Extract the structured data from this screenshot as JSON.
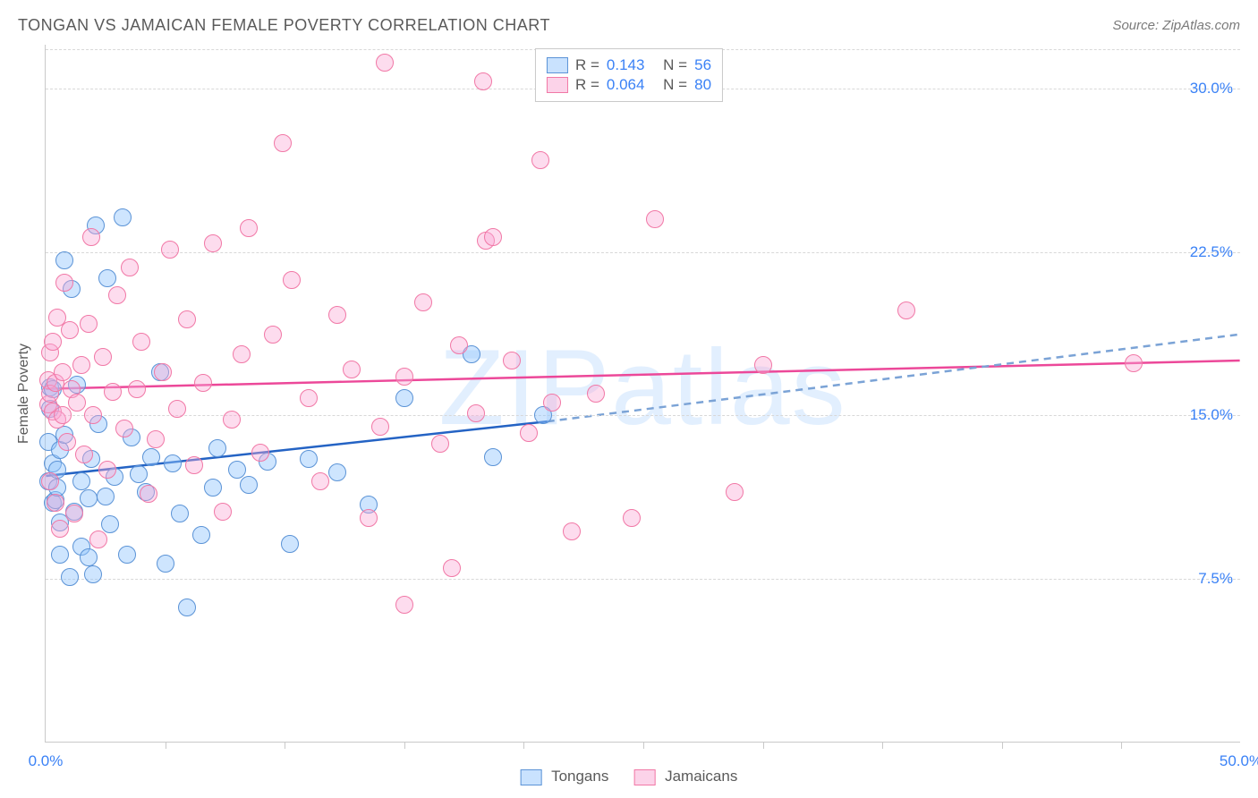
{
  "title": "TONGAN VS JAMAICAN FEMALE POVERTY CORRELATION CHART",
  "source": "Source: ZipAtlas.com",
  "watermark": "ZIPatlas",
  "ylabel": "Female Poverty",
  "chart": {
    "type": "scatter",
    "x_domain": [
      0,
      50
    ],
    "y_domain": [
      0,
      32
    ],
    "xticks_minor": [
      5,
      10,
      15,
      20,
      25,
      30,
      35,
      40,
      45
    ],
    "xtick_labels": [
      {
        "v": 0,
        "label": "0.0%"
      },
      {
        "v": 50,
        "label": "50.0%"
      }
    ],
    "ytick_labels": [
      {
        "v": 7.5,
        "label": "7.5%"
      },
      {
        "v": 15.0,
        "label": "15.0%"
      },
      {
        "v": 22.5,
        "label": "22.5%"
      },
      {
        "v": 30.0,
        "label": "30.0%"
      }
    ],
    "gridlines_y": [
      7.5,
      15.0,
      22.5,
      30.0,
      31.8
    ],
    "background_color": "#ffffff",
    "grid_color": "#d8d8d8",
    "axis_color": "#c9c9c9",
    "label_color": "#3b82f6",
    "marker_radius": 10,
    "series": [
      {
        "name": "Tongans",
        "color_fill": "rgba(147,197,253,0.45)",
        "color_stroke": "#5b93d6",
        "R": "0.143",
        "N": "56",
        "trend": {
          "x1": 0,
          "y1": 12.2,
          "x2": 21,
          "y2": 14.7,
          "solid_color": "#2463c4",
          "dash": {
            "x1": 21,
            "y1": 14.7,
            "x2": 50,
            "y2": 18.7
          }
        },
        "points": [
          [
            0.1,
            12.0
          ],
          [
            0.1,
            13.8
          ],
          [
            0.2,
            15.3
          ],
          [
            0.2,
            16.3
          ],
          [
            0.3,
            11.0
          ],
          [
            0.3,
            12.8
          ],
          [
            0.3,
            16.2
          ],
          [
            0.4,
            11.1
          ],
          [
            0.5,
            11.7
          ],
          [
            0.5,
            12.5
          ],
          [
            0.6,
            13.4
          ],
          [
            0.6,
            8.6
          ],
          [
            0.6,
            10.1
          ],
          [
            0.8,
            14.1
          ],
          [
            0.8,
            22.1
          ],
          [
            1.0,
            7.6
          ],
          [
            1.1,
            20.8
          ],
          [
            1.2,
            10.6
          ],
          [
            1.3,
            16.4
          ],
          [
            1.5,
            12.0
          ],
          [
            1.5,
            9.0
          ],
          [
            1.8,
            8.5
          ],
          [
            1.8,
            11.2
          ],
          [
            1.9,
            13.0
          ],
          [
            2.0,
            7.7
          ],
          [
            2.1,
            23.7
          ],
          [
            2.2,
            14.6
          ],
          [
            2.5,
            11.3
          ],
          [
            2.6,
            21.3
          ],
          [
            2.7,
            10.0
          ],
          [
            2.9,
            12.2
          ],
          [
            3.2,
            24.1
          ],
          [
            3.4,
            8.6
          ],
          [
            3.6,
            14.0
          ],
          [
            3.9,
            12.3
          ],
          [
            4.2,
            11.5
          ],
          [
            4.4,
            13.1
          ],
          [
            4.8,
            17.0
          ],
          [
            5.0,
            8.2
          ],
          [
            5.3,
            12.8
          ],
          [
            5.6,
            10.5
          ],
          [
            5.9,
            6.2
          ],
          [
            6.5,
            9.5
          ],
          [
            7.0,
            11.7
          ],
          [
            7.2,
            13.5
          ],
          [
            8.0,
            12.5
          ],
          [
            8.5,
            11.8
          ],
          [
            9.3,
            12.9
          ],
          [
            10.2,
            9.1
          ],
          [
            11.0,
            13.0
          ],
          [
            12.2,
            12.4
          ],
          [
            13.5,
            10.9
          ],
          [
            15.0,
            15.8
          ],
          [
            17.8,
            17.8
          ],
          [
            18.7,
            13.1
          ],
          [
            20.8,
            15.0
          ]
        ]
      },
      {
        "name": "Jamaicans",
        "color_fill": "rgba(249,168,212,0.4)",
        "color_stroke": "#f178a6",
        "R": "0.064",
        "N": "80",
        "trend": {
          "x1": 0,
          "y1": 16.2,
          "x2": 50,
          "y2": 17.5,
          "solid_color": "#ec4899"
        },
        "points": [
          [
            0.1,
            15.5
          ],
          [
            0.1,
            16.6
          ],
          [
            0.2,
            12.0
          ],
          [
            0.2,
            16.0
          ],
          [
            0.2,
            17.9
          ],
          [
            0.3,
            15.2
          ],
          [
            0.3,
            18.4
          ],
          [
            0.4,
            11.0
          ],
          [
            0.4,
            16.5
          ],
          [
            0.5,
            14.8
          ],
          [
            0.5,
            19.5
          ],
          [
            0.6,
            9.8
          ],
          [
            0.7,
            15.0
          ],
          [
            0.7,
            17.0
          ],
          [
            0.8,
            21.1
          ],
          [
            0.9,
            13.8
          ],
          [
            1.0,
            18.9
          ],
          [
            1.1,
            16.2
          ],
          [
            1.2,
            10.5
          ],
          [
            1.3,
            15.6
          ],
          [
            1.5,
            17.3
          ],
          [
            1.6,
            13.2
          ],
          [
            1.8,
            19.2
          ],
          [
            1.9,
            23.2
          ],
          [
            2.0,
            15.0
          ],
          [
            2.2,
            9.3
          ],
          [
            2.4,
            17.7
          ],
          [
            2.6,
            12.5
          ],
          [
            2.8,
            16.1
          ],
          [
            3.0,
            20.5
          ],
          [
            3.3,
            14.4
          ],
          [
            3.5,
            21.8
          ],
          [
            3.8,
            16.2
          ],
          [
            4.0,
            18.4
          ],
          [
            4.3,
            11.4
          ],
          [
            4.6,
            13.9
          ],
          [
            4.9,
            17.0
          ],
          [
            5.2,
            22.6
          ],
          [
            5.5,
            15.3
          ],
          [
            5.9,
            19.4
          ],
          [
            6.2,
            12.7
          ],
          [
            6.6,
            16.5
          ],
          [
            7.0,
            22.9
          ],
          [
            7.4,
            10.6
          ],
          [
            7.8,
            14.8
          ],
          [
            8.2,
            17.8
          ],
          [
            8.5,
            23.6
          ],
          [
            9.0,
            13.3
          ],
          [
            9.5,
            18.7
          ],
          [
            9.9,
            27.5
          ],
          [
            10.3,
            21.2
          ],
          [
            11.0,
            15.8
          ],
          [
            11.5,
            12.0
          ],
          [
            12.2,
            19.6
          ],
          [
            12.8,
            17.1
          ],
          [
            13.5,
            10.3
          ],
          [
            14.0,
            14.5
          ],
          [
            14.2,
            31.2
          ],
          [
            15.0,
            16.8
          ],
          [
            15.0,
            6.3
          ],
          [
            15.8,
            20.2
          ],
          [
            16.5,
            13.7
          ],
          [
            17.0,
            8.0
          ],
          [
            17.3,
            18.2
          ],
          [
            18.0,
            15.1
          ],
          [
            18.3,
            30.3
          ],
          [
            18.4,
            23.0
          ],
          [
            18.7,
            23.2
          ],
          [
            19.5,
            17.5
          ],
          [
            20.2,
            14.2
          ],
          [
            20.7,
            26.7
          ],
          [
            21.2,
            15.6
          ],
          [
            22.0,
            9.7
          ],
          [
            23.0,
            16.0
          ],
          [
            24.5,
            10.3
          ],
          [
            25.5,
            24.0
          ],
          [
            28.8,
            11.5
          ],
          [
            30.0,
            17.3
          ],
          [
            36.0,
            19.8
          ],
          [
            45.5,
            17.4
          ]
        ]
      }
    ]
  },
  "legend_top": [
    {
      "swatch": "blue",
      "r_label": "R =",
      "r_val": "0.143",
      "n_label": "N =",
      "n_val": "56"
    },
    {
      "swatch": "pink",
      "r_label": "R =",
      "r_val": "0.064",
      "n_label": "N =",
      "n_val": "80"
    }
  ],
  "legend_bottom": [
    {
      "swatch": "blue",
      "label": "Tongans"
    },
    {
      "swatch": "pink",
      "label": "Jamaicans"
    }
  ]
}
